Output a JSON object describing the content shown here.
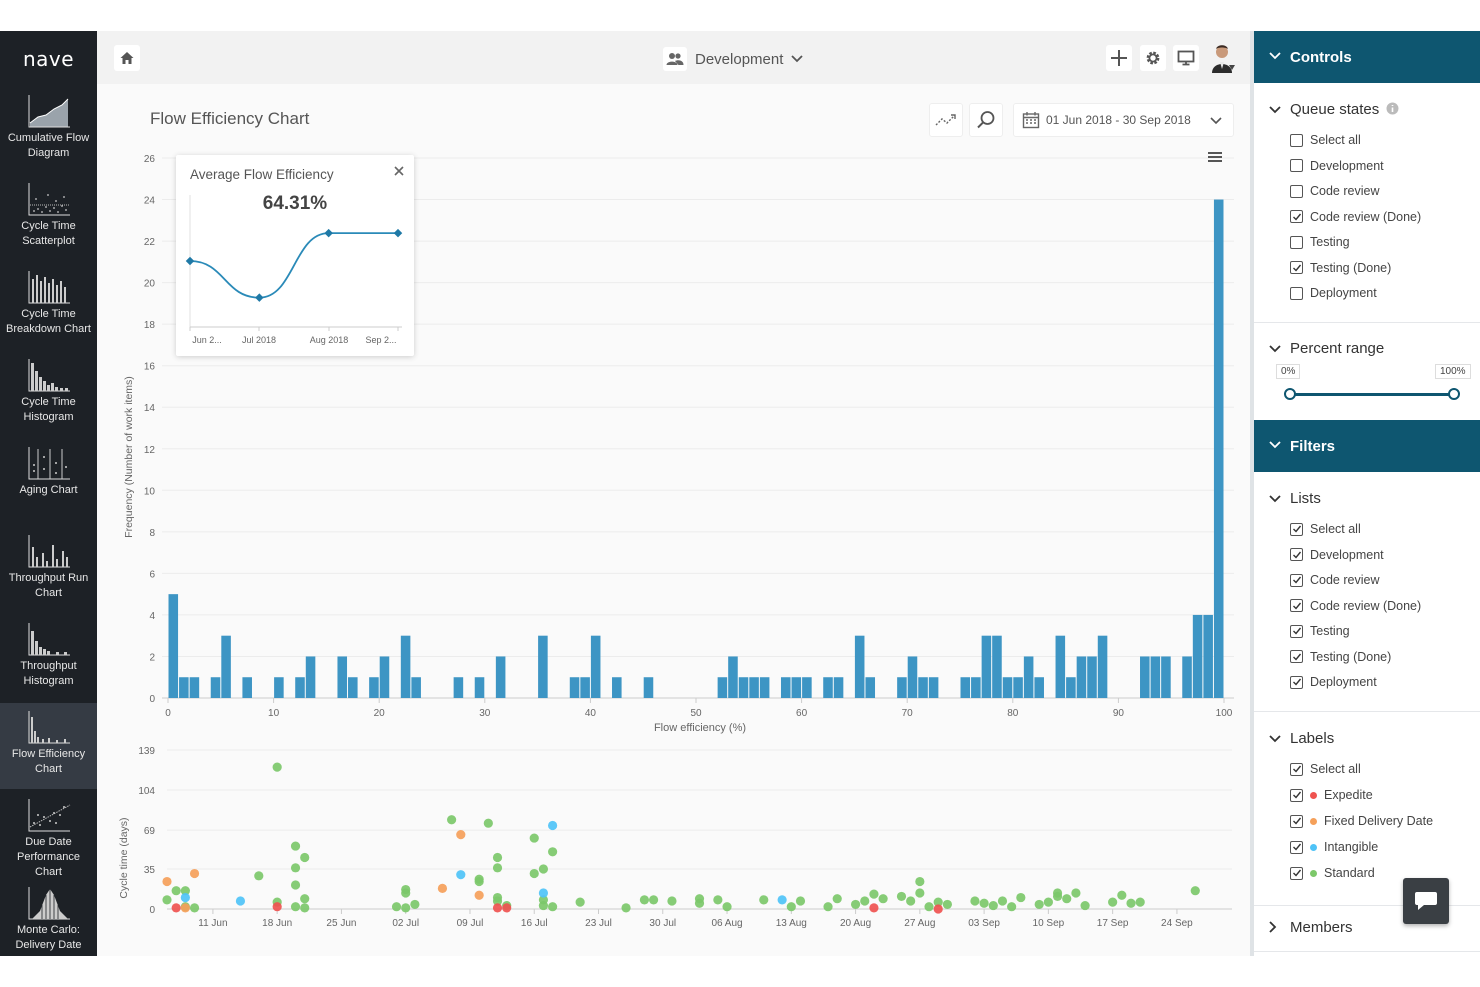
{
  "app": {
    "logo": "nave"
  },
  "sidebar": {
    "items": [
      {
        "label1": "Cumulative Flow",
        "label2": "Diagram",
        "icon": "cumulative-flow-icon"
      },
      {
        "label1": "Cycle Time",
        "label2": "Scatterplot",
        "icon": "scatterplot-icon"
      },
      {
        "label1": "Cycle Time",
        "label2": "Breakdown Chart",
        "icon": "breakdown-icon"
      },
      {
        "label1": "Cycle Time",
        "label2": "Histogram",
        "icon": "histogram-icon"
      },
      {
        "label1": "Aging Chart",
        "label2": "",
        "icon": "aging-icon"
      },
      {
        "label1": "Throughput Run",
        "label2": "Chart",
        "icon": "run-chart-icon"
      },
      {
        "label1": "Throughput",
        "label2": "Histogram",
        "icon": "throughput-histogram-icon"
      },
      {
        "label1": "Flow Efficiency",
        "label2": "Chart",
        "icon": "flow-efficiency-icon"
      },
      {
        "label1": "Due Date",
        "label2": "Performance",
        "label3": "Chart",
        "icon": "due-date-icon"
      },
      {
        "label1": "Monte Carlo:",
        "label2": "Delivery Date",
        "icon": "monte-carlo-icon"
      }
    ]
  },
  "topbar": {
    "board": "Development"
  },
  "main": {
    "title": "Flow Efficiency Chart",
    "date_range": "01 Jun 2018 - 30 Sep 2018"
  },
  "popup": {
    "title": "Average Flow Efficiency",
    "value": "64.31%",
    "x_labels": [
      "Jun 2...",
      "Jul 2018",
      "Aug 2018",
      "Sep 2..."
    ],
    "points": [
      {
        "month": "Jun 2018",
        "value": 62.5
      },
      {
        "month": "Jul 2018",
        "value": 50.0
      },
      {
        "month": "Aug 2018",
        "value": 72.0
      },
      {
        "month": "Sep 2018",
        "value": 72.0
      }
    ]
  },
  "chart_data": [
    {
      "type": "bar",
      "xlabel": "Flow efficiency (%)",
      "ylabel": "Frequency (Number of work items)",
      "xlim": [
        0,
        100
      ],
      "ylim": [
        0,
        26
      ],
      "x_ticks": [
        0,
        10,
        20,
        30,
        40,
        50,
        60,
        70,
        80,
        90,
        100
      ],
      "y_ticks": [
        0,
        2,
        4,
        6,
        8,
        10,
        12,
        14,
        16,
        18,
        20,
        22,
        24,
        26
      ],
      "bin_width": 1,
      "bins": [
        [
          0,
          5
        ],
        [
          1,
          1
        ],
        [
          2,
          1
        ],
        [
          4,
          1
        ],
        [
          5,
          3
        ],
        [
          7,
          1
        ],
        [
          10,
          1
        ],
        [
          12,
          1
        ],
        [
          13,
          2
        ],
        [
          16,
          2
        ],
        [
          17,
          1
        ],
        [
          19,
          1
        ],
        [
          20,
          2
        ],
        [
          22,
          3
        ],
        [
          23,
          1
        ],
        [
          27,
          1
        ],
        [
          29,
          1
        ],
        [
          31,
          2
        ],
        [
          35,
          3
        ],
        [
          38,
          1
        ],
        [
          39,
          1
        ],
        [
          40,
          3
        ],
        [
          42,
          1
        ],
        [
          45,
          1
        ],
        [
          52,
          1
        ],
        [
          53,
          2
        ],
        [
          54,
          1
        ],
        [
          55,
          1
        ],
        [
          56,
          1
        ],
        [
          58,
          1
        ],
        [
          59,
          1
        ],
        [
          60,
          1
        ],
        [
          62,
          1
        ],
        [
          63,
          1
        ],
        [
          65,
          3
        ],
        [
          66,
          1
        ],
        [
          69,
          1
        ],
        [
          70,
          2
        ],
        [
          71,
          1
        ],
        [
          72,
          1
        ],
        [
          75,
          1
        ],
        [
          76,
          1
        ],
        [
          77,
          3
        ],
        [
          78,
          3
        ],
        [
          79,
          1
        ],
        [
          80,
          1
        ],
        [
          81,
          2
        ],
        [
          82,
          1
        ],
        [
          84,
          3
        ],
        [
          85,
          1
        ],
        [
          86,
          2
        ],
        [
          87,
          2
        ],
        [
          88,
          3
        ],
        [
          92,
          2
        ],
        [
          93,
          2
        ],
        [
          94,
          2
        ],
        [
          96,
          2
        ],
        [
          97,
          4
        ],
        [
          98,
          4
        ],
        [
          99,
          24
        ]
      ]
    },
    {
      "type": "scatter",
      "ylabel": "Cycle time (days)",
      "x_ticks": [
        "11 Jun",
        "18 Jun",
        "25 Jun",
        "02 Jul",
        "09 Jul",
        "16 Jul",
        "23 Jul",
        "30 Jul",
        "06 Aug",
        "13 Aug",
        "20 Aug",
        "27 Aug",
        "03 Sep",
        "10 Sep",
        "17 Sep",
        "24 Sep"
      ],
      "y_ticks": [
        0,
        35,
        69,
        104,
        139
      ],
      "xlim": [
        "2018-06-06",
        "2018-09-30"
      ],
      "ylim": [
        0,
        139
      ],
      "series": [
        {
          "name": "Expedite",
          "color": "#ef5350",
          "points": [
            [
              "2018-06-07",
              1
            ],
            [
              "2018-06-18",
              2
            ],
            [
              "2018-07-12",
              1
            ],
            [
              "2018-07-13",
              1
            ],
            [
              "2018-08-22",
              1
            ],
            [
              "2018-08-29",
              0
            ]
          ]
        },
        {
          "name": "Fixed Delivery Date",
          "color": "#f5a05a",
          "points": [
            [
              "2018-06-06",
              24
            ],
            [
              "2018-06-09",
              31
            ],
            [
              "2018-06-08",
              1
            ],
            [
              "2018-07-06",
              18
            ],
            [
              "2018-07-08",
              65
            ],
            [
              "2018-07-10",
              12
            ]
          ]
        },
        {
          "name": "Intangible",
          "color": "#4fc3f7",
          "points": [
            [
              "2018-06-14",
              7
            ],
            [
              "2018-07-08",
              30
            ],
            [
              "2018-07-17",
              14
            ],
            [
              "2018-07-18",
              73
            ],
            [
              "2018-08-12",
              8
            ],
            [
              "2018-06-08",
              10
            ]
          ]
        },
        {
          "name": "Standard",
          "color": "#7cc86a",
          "points": [
            [
              "2018-06-06",
              8
            ],
            [
              "2018-06-07",
              16
            ],
            [
              "2018-06-08",
              16
            ],
            [
              "2018-06-08",
              2
            ],
            [
              "2018-06-09",
              1
            ],
            [
              "2018-06-16",
              29
            ],
            [
              "2018-06-18",
              124
            ],
            [
              "2018-06-18",
              6
            ],
            [
              "2018-06-20",
              55
            ],
            [
              "2018-06-21",
              45
            ],
            [
              "2018-06-20",
              36
            ],
            [
              "2018-06-20",
              21
            ],
            [
              "2018-06-21",
              9
            ],
            [
              "2018-06-20",
              2
            ],
            [
              "2018-06-21",
              1
            ],
            [
              "2018-07-01",
              2
            ],
            [
              "2018-07-02",
              17
            ],
            [
              "2018-07-02",
              14
            ],
            [
              "2018-07-03",
              4
            ],
            [
              "2018-07-02",
              1
            ],
            [
              "2018-07-07",
              78
            ],
            [
              "2018-07-10",
              26
            ],
            [
              "2018-07-10",
              24
            ],
            [
              "2018-07-12",
              10
            ],
            [
              "2018-07-12",
              7
            ],
            [
              "2018-07-13",
              3
            ],
            [
              "2018-07-12",
              45
            ],
            [
              "2018-07-12",
              36
            ],
            [
              "2018-07-11",
              75
            ],
            [
              "2018-07-16",
              62
            ],
            [
              "2018-07-16",
              31
            ],
            [
              "2018-07-17",
              35
            ],
            [
              "2018-07-17",
              8
            ],
            [
              "2018-07-17",
              3
            ],
            [
              "2018-07-18",
              50
            ],
            [
              "2018-07-18",
              2
            ],
            [
              "2018-07-21",
              6
            ],
            [
              "2018-07-26",
              1
            ],
            [
              "2018-07-28",
              8
            ],
            [
              "2018-07-29",
              8
            ],
            [
              "2018-07-31",
              7
            ],
            [
              "2018-08-03",
              9
            ],
            [
              "2018-08-03",
              5
            ],
            [
              "2018-08-05",
              8
            ],
            [
              "2018-08-06",
              2
            ],
            [
              "2018-08-10",
              8
            ],
            [
              "2018-08-13",
              2
            ],
            [
              "2018-08-14",
              7
            ],
            [
              "2018-08-17",
              2
            ],
            [
              "2018-08-18",
              9
            ],
            [
              "2018-08-20",
              4
            ],
            [
              "2018-08-21",
              7
            ],
            [
              "2018-08-22",
              13
            ],
            [
              "2018-08-23",
              9
            ],
            [
              "2018-08-25",
              11
            ],
            [
              "2018-08-26",
              7
            ],
            [
              "2018-08-27",
              24
            ],
            [
              "2018-08-27",
              14
            ],
            [
              "2018-08-28",
              2
            ],
            [
              "2018-08-29",
              6
            ],
            [
              "2018-08-30",
              4
            ],
            [
              "2018-09-02",
              7
            ],
            [
              "2018-09-03",
              5
            ],
            [
              "2018-09-04",
              3
            ],
            [
              "2018-09-05",
              7
            ],
            [
              "2018-09-06",
              2
            ],
            [
              "2018-09-07",
              10
            ],
            [
              "2018-09-09",
              4
            ],
            [
              "2018-09-10",
              6
            ],
            [
              "2018-09-11",
              14
            ],
            [
              "2018-09-11",
              11
            ],
            [
              "2018-09-12",
              9
            ],
            [
              "2018-09-13",
              14
            ],
            [
              "2018-09-14",
              3
            ],
            [
              "2018-09-17",
              6
            ],
            [
              "2018-09-18",
              12
            ],
            [
              "2018-09-19",
              5
            ],
            [
              "2018-09-20",
              6
            ],
            [
              "2018-09-26",
              16
            ]
          ]
        }
      ]
    }
  ],
  "controls": {
    "title": "Controls",
    "queue_states": {
      "title": "Queue states",
      "items": [
        {
          "label": "Select all",
          "checked": false
        },
        {
          "label": "Development",
          "checked": false
        },
        {
          "label": "Code review",
          "checked": false
        },
        {
          "label": "Code review (Done)",
          "checked": true
        },
        {
          "label": "Testing",
          "checked": false
        },
        {
          "label": "Testing (Done)",
          "checked": true
        },
        {
          "label": "Deployment",
          "checked": false
        }
      ]
    },
    "percent_range": {
      "title": "Percent range",
      "min_label": "0%",
      "max_label": "100%",
      "min": 0,
      "max": 100
    }
  },
  "filters": {
    "title": "Filters",
    "lists": {
      "title": "Lists",
      "items": [
        {
          "label": "Select all",
          "checked": true
        },
        {
          "label": "Development",
          "checked": true
        },
        {
          "label": "Code review",
          "checked": true
        },
        {
          "label": "Code review (Done)",
          "checked": true
        },
        {
          "label": "Testing",
          "checked": true
        },
        {
          "label": "Testing (Done)",
          "checked": true
        },
        {
          "label": "Deployment",
          "checked": true
        }
      ]
    },
    "labels": {
      "title": "Labels",
      "items": [
        {
          "label": "Select all",
          "checked": true,
          "color": ""
        },
        {
          "label": "Expedite",
          "checked": true,
          "color": "#ef5350"
        },
        {
          "label": "Fixed Delivery Date",
          "checked": true,
          "color": "#f5a05a"
        },
        {
          "label": "Intangible",
          "checked": true,
          "color": "#4fc3f7"
        },
        {
          "label": "Standard",
          "checked": true,
          "color": "#7cc86a"
        }
      ]
    },
    "members": {
      "title": "Members"
    }
  },
  "colors": {
    "accent": "#0e5670",
    "bar": "#3d95c4",
    "sidebar": "#1d2126"
  }
}
